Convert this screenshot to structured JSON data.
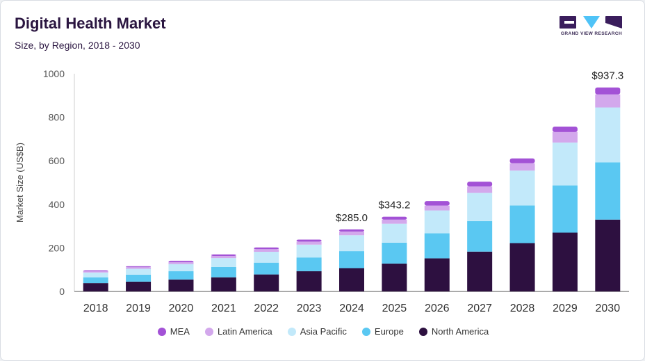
{
  "header": {
    "title": "Digital Health Market",
    "subtitle": "Size, by Region, 2018 - 2030"
  },
  "logo": {
    "text": "GRAND VIEW RESEARCH",
    "color": "#3a1d5c",
    "accent": "#4fc3f7"
  },
  "chart_data": {
    "type": "bar",
    "stacked": true,
    "ylabel": "Market Size (US$B)",
    "ylim": [
      0,
      1000
    ],
    "yticks": [
      0,
      200,
      400,
      600,
      800,
      1000
    ],
    "grid": false,
    "legend_position": "bottom",
    "categories": [
      "2018",
      "2019",
      "2020",
      "2021",
      "2022",
      "2023",
      "2024",
      "2025",
      "2026",
      "2027",
      "2028",
      "2029",
      "2030"
    ],
    "series": [
      {
        "name": "North America",
        "color": "#2d1040",
        "values": [
          38,
          45,
          55,
          65,
          78,
          93,
          107,
          128,
          152,
          183,
          222,
          270,
          330
        ]
      },
      {
        "name": "Europe",
        "color": "#5ac8f2",
        "values": [
          27,
          32,
          38,
          47,
          54,
          63,
          78,
          96,
          115,
          140,
          173,
          217,
          263
        ]
      },
      {
        "name": "Asia Pacific",
        "color": "#c2e9fa",
        "values": [
          22,
          27,
          33,
          41,
          50,
          59,
          73,
          87,
          105,
          130,
          160,
          197,
          252
        ]
      },
      {
        "name": "Latin America",
        "color": "#d3a8ec",
        "values": [
          6,
          7,
          9,
          10,
          12,
          14,
          17,
          19,
          22,
          29,
          34,
          48,
          60
        ]
      },
      {
        "name": "MEA",
        "color": "#a352d6",
        "values": [
          4,
          5,
          6,
          7,
          8,
          9,
          10,
          13,
          21,
          22,
          22,
          25,
          32
        ]
      }
    ],
    "annotations": [
      {
        "category": "2024",
        "label": "$285.0",
        "value": 285.0
      },
      {
        "category": "2025",
        "label": "$343.2",
        "value": 343.2
      },
      {
        "category": "2030",
        "label": "$937.3",
        "value": 937.3
      }
    ]
  },
  "legend_order": [
    "MEA",
    "Latin America",
    "Asia Pacific",
    "Europe",
    "North America"
  ]
}
